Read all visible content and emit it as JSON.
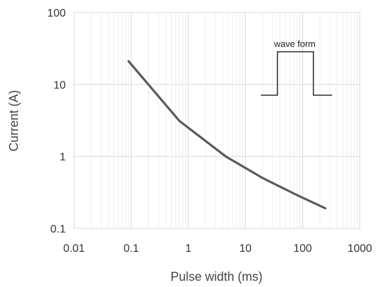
{
  "chart_data": {
    "type": "line",
    "xlabel": "Pulse width (ms)",
    "ylabel": "Current (A)",
    "x_scale": "log",
    "y_scale": "log",
    "xlim": [
      0.01,
      1000
    ],
    "ylim": [
      0.1,
      100
    ],
    "x_ticks": [
      "0.01",
      "0.1",
      "1",
      "10",
      "100",
      "1000"
    ],
    "y_ticks": [
      "0.1",
      "1",
      "10",
      "100"
    ],
    "grid": true,
    "series": [
      {
        "color": "#595959",
        "x": [
          0.09,
          0.7,
          4.5,
          20,
          80,
          250
        ],
        "y": [
          21,
          3.1,
          1.0,
          0.5,
          0.29,
          0.19
        ]
      }
    ],
    "annotation": {
      "label": "wave form",
      "shape": "rectangular pulse"
    }
  }
}
